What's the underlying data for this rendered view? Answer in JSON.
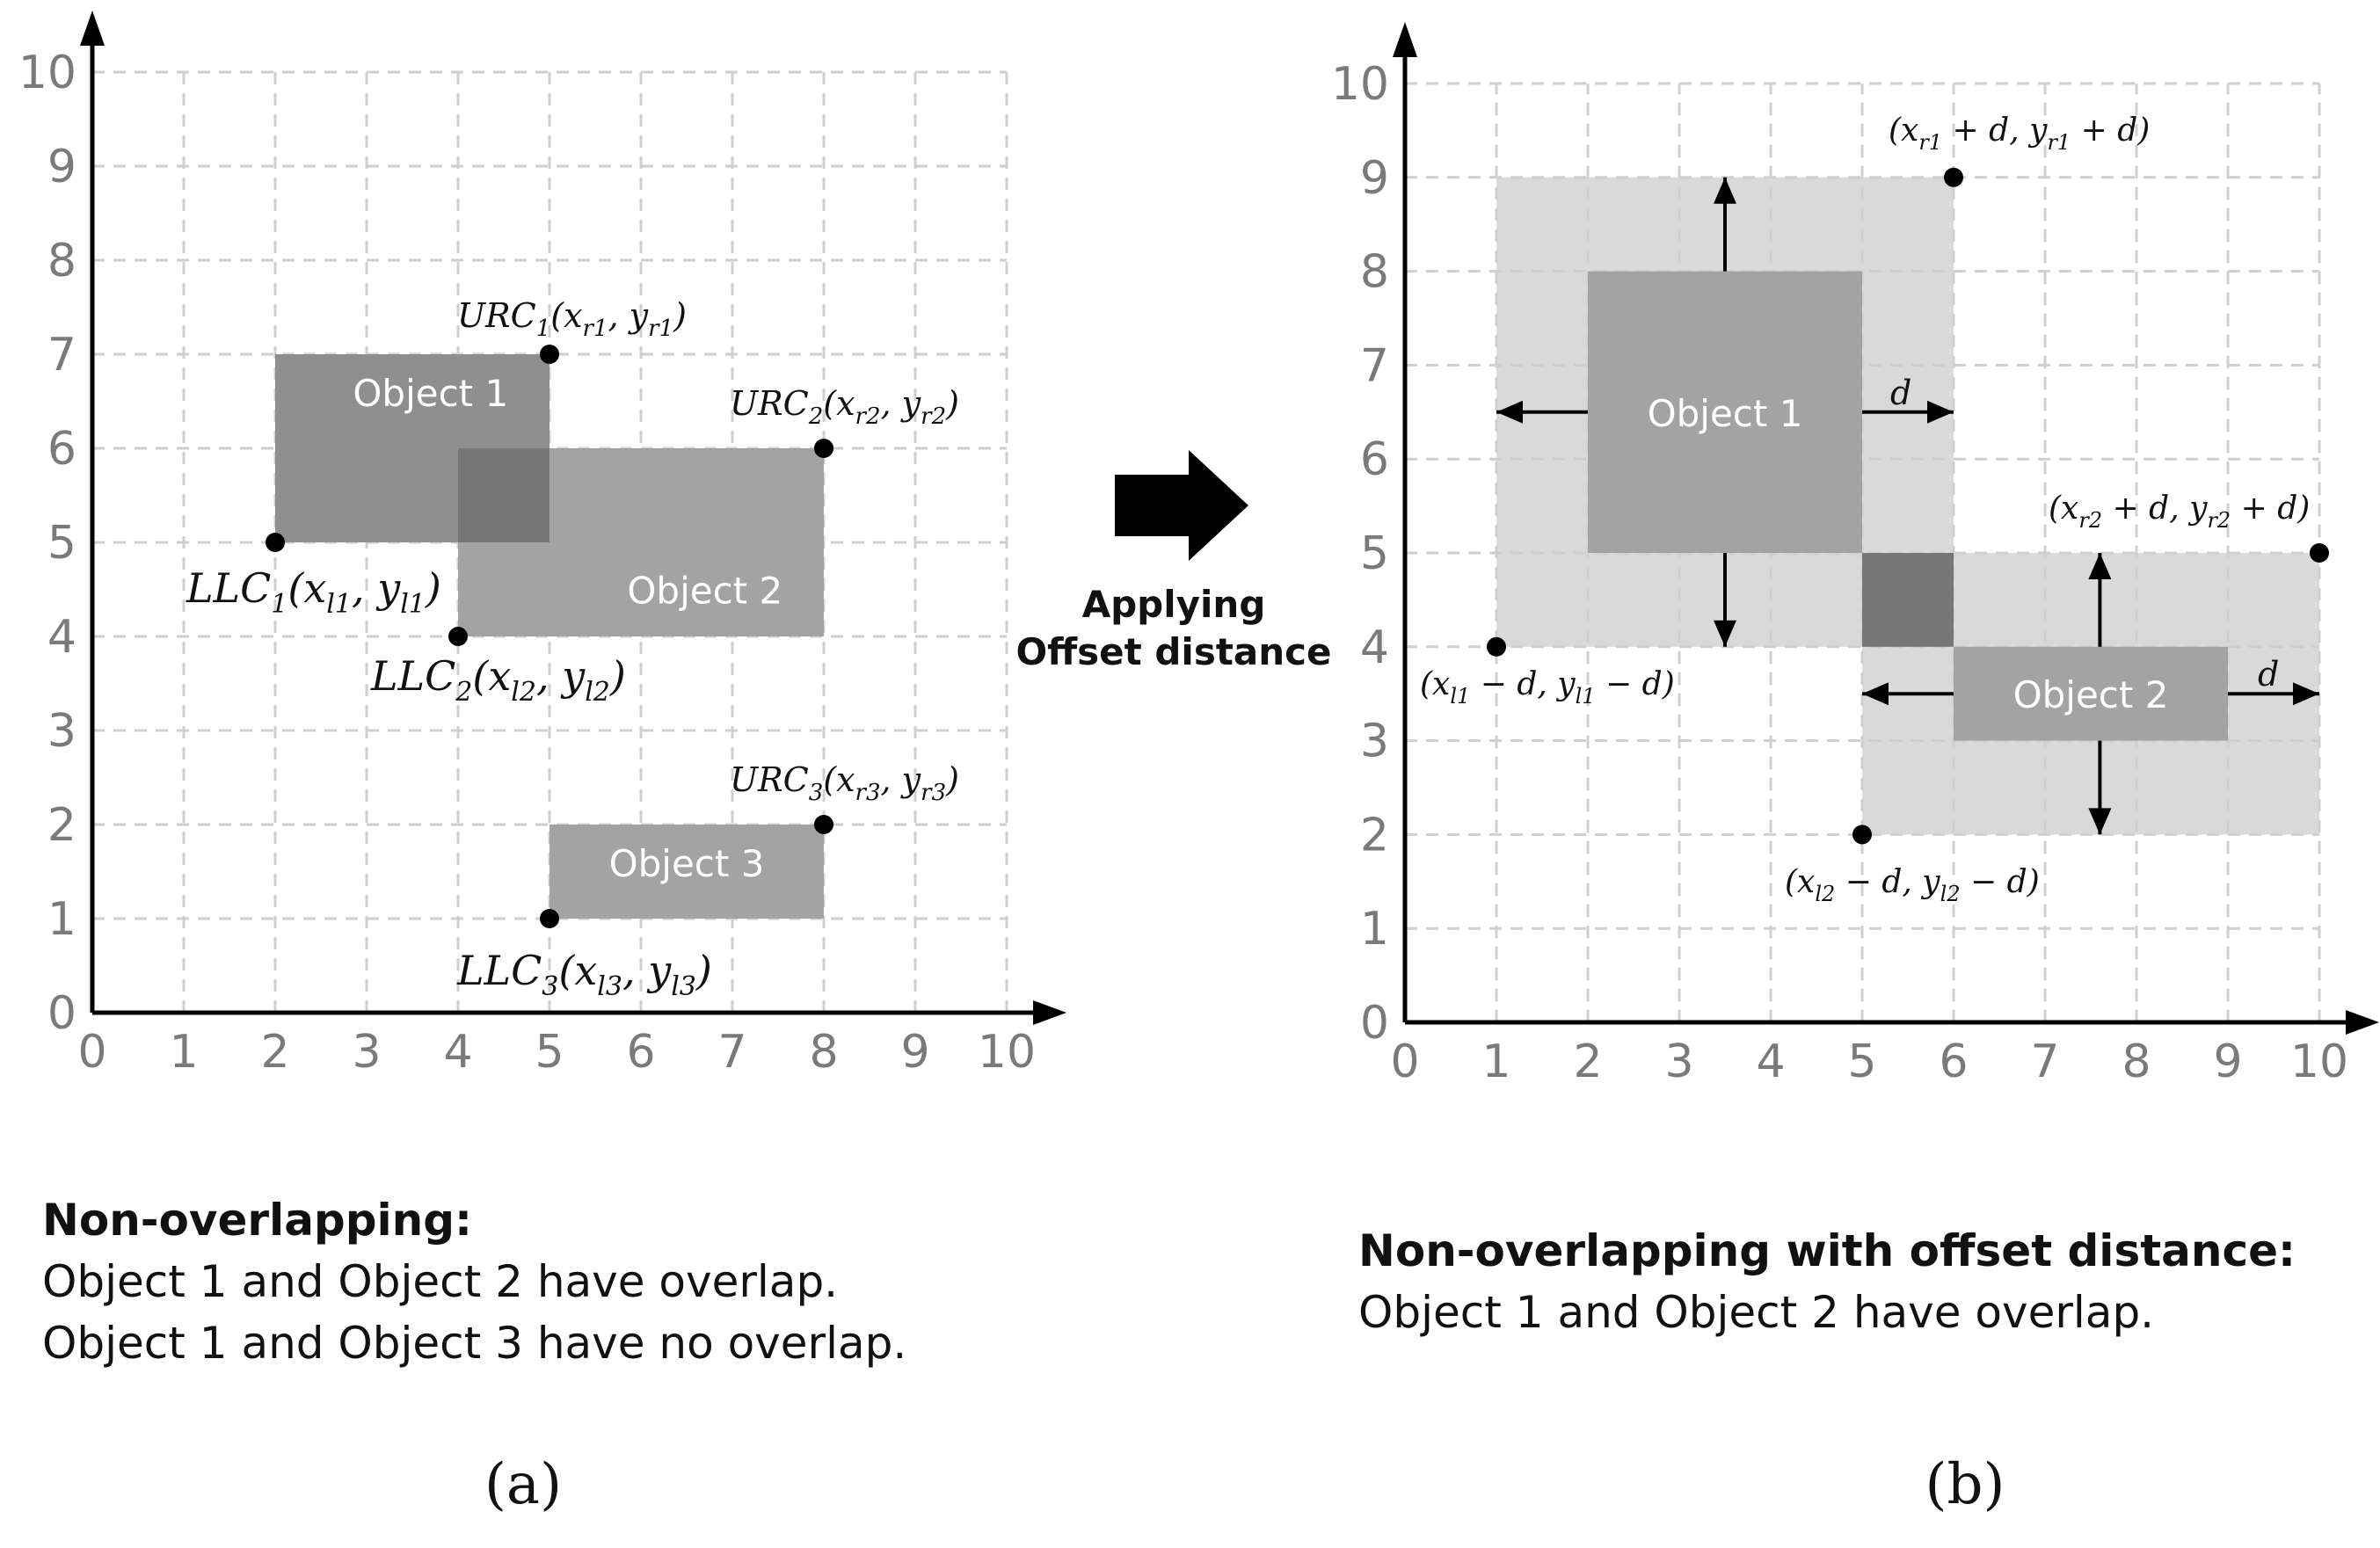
{
  "panels": [
    {
      "id": "a",
      "panel_label": "(a)",
      "axes": {
        "xlim": [
          0,
          10
        ],
        "ylim": [
          0,
          10
        ],
        "ticks": [
          "0",
          "1",
          "2",
          "3",
          "4",
          "5",
          "6",
          "7",
          "8",
          "9",
          "10"
        ],
        "grid": "dashed"
      },
      "rects": [
        {
          "name": "object-1-rect",
          "label": "Object 1",
          "x1": 2,
          "y1": 5,
          "x2": 5,
          "y2": 7,
          "color": "#8f8f8f"
        },
        {
          "name": "object-2-rect",
          "label": "Object 2",
          "x1": 4,
          "y1": 4,
          "x2": 8,
          "y2": 6,
          "color": "#a3a3a3"
        },
        {
          "name": "object-3-rect",
          "label": "Object 3",
          "x1": 5,
          "y1": 1,
          "x2": 8,
          "y2": 2,
          "color": "#a3a3a3"
        }
      ],
      "overlap": {
        "x1": 4,
        "y1": 5,
        "x2": 5,
        "y2": 6,
        "color": "#777777"
      },
      "points": [
        {
          "name": "urc1",
          "x": 5,
          "y": 7,
          "main": "URC",
          "sub": "1",
          "coords": "(x",
          "xs": "r1",
          "ys": "r1"
        },
        {
          "name": "urc2",
          "x": 8,
          "y": 6,
          "main": "URC",
          "sub": "2",
          "coords": "(x",
          "xs": "r2",
          "ys": "r2"
        },
        {
          "name": "llc1",
          "x": 2,
          "y": 5,
          "main": "LLC",
          "sub": "1",
          "coords": "(x",
          "xs": "l1",
          "ys": "l1"
        },
        {
          "name": "llc2",
          "x": 4,
          "y": 4,
          "main": "LLC",
          "sub": "2",
          "coords": "(x",
          "xs": "l2",
          "ys": "l2"
        },
        {
          "name": "urc3",
          "x": 8,
          "y": 2,
          "main": "URC",
          "sub": "3",
          "coords": "(x",
          "xs": "r3",
          "ys": "r3"
        },
        {
          "name": "llc3",
          "x": 5,
          "y": 1,
          "main": "LLC",
          "sub": "3",
          "coords": "(x",
          "xs": "l3",
          "ys": "l3"
        }
      ],
      "caption": {
        "title": "Non-overlapping:",
        "lines": [
          "Object 1 and Object 2 have overlap.",
          "Object 1 and Object 3 have no overlap."
        ]
      }
    },
    {
      "id": "b",
      "panel_label": "(b)",
      "axes": {
        "xlim": [
          0,
          10
        ],
        "ylim": [
          0,
          10
        ],
        "ticks": [
          "0",
          "1",
          "2",
          "3",
          "4",
          "5",
          "6",
          "7",
          "8",
          "9",
          "10"
        ],
        "grid": "dashed"
      },
      "offset_rects": [
        {
          "name": "object-1-offset-area",
          "x1": 1,
          "y1": 4,
          "x2": 6,
          "y2": 9,
          "color": "#d9d9d9"
        },
        {
          "name": "object-2-offset-area",
          "x1": 5,
          "y1": 2,
          "x2": 10,
          "y2": 5,
          "color": "#d9d9d9"
        }
      ],
      "rects": [
        {
          "name": "object-1-rect",
          "label": "Object 1",
          "x1": 2,
          "y1": 5,
          "x2": 5,
          "y2": 8,
          "color": "#a3a3a3"
        },
        {
          "name": "object-2-rect",
          "label": "Object 2",
          "x1": 6,
          "y1": 3,
          "x2": 9,
          "y2": 4,
          "color": "#a3a3a3"
        }
      ],
      "overlap": {
        "x1": 5,
        "y1": 4,
        "x2": 6,
        "y2": 5,
        "color": "#777777"
      },
      "offset_symbol": "d",
      "points": [
        {
          "name": "offset-urc1",
          "x": 6,
          "y": 9,
          "label": "(x_r1 + d, y_r1 + d)"
        },
        {
          "name": "offset-llc1",
          "x": 1,
          "y": 4,
          "label": "(x_l1 − d, y_l1 − d)"
        },
        {
          "name": "offset-urc2",
          "x": 10,
          "y": 5,
          "label": "(x_r2 + d, y_r2 + d)"
        },
        {
          "name": "offset-llc2",
          "x": 5,
          "y": 2,
          "label": "(x_l2 − d, y_l2 − d)"
        }
      ],
      "caption": {
        "title": "Non-overlapping with offset distance:",
        "lines": [
          "Object 1 and Object 2 have overlap."
        ]
      }
    }
  ],
  "transition": {
    "label_line1": "Applying",
    "label_line2": "Offset distance",
    "color": "#000000"
  }
}
